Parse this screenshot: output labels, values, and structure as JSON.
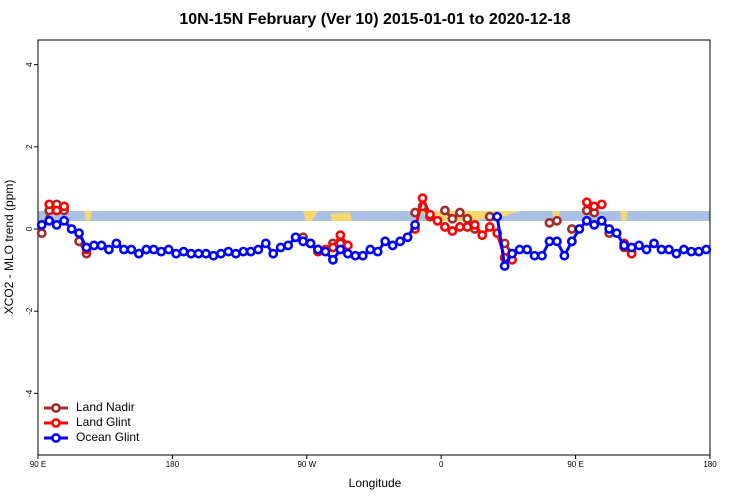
{
  "chart_data": {
    "type": "line",
    "title": "10N-15N February (Ver 10)   2015-01-01 to 2020-12-18",
    "x_label": "Longitude",
    "y_label": "XCO2 - MLO trend (ppm)",
    "xlim": [
      90,
      540
    ],
    "ylim": [
      -5.5,
      4.6
    ],
    "xticks": [
      {
        "value": 90,
        "label": "90 E"
      },
      180,
      {
        "value": 270,
        "label": "90 W"
      },
      {
        "value": 360,
        "label": "0"
      },
      {
        "value": 450,
        "label": "90 E"
      },
      {
        "value": 540,
        "label": "180"
      }
    ],
    "yticks": [
      -4,
      -2,
      0,
      2,
      4
    ],
    "legend": "bottom-left",
    "x": [
      92.5,
      97.5,
      102.5,
      107.5,
      112.5,
      117.5,
      122.5,
      127.5,
      132.5,
      137.5,
      142.5,
      147.5,
      152.5,
      157.5,
      162.5,
      167.5,
      172.5,
      177.5,
      182.5,
      187.5,
      192.5,
      197.5,
      202.5,
      207.5,
      212.5,
      217.5,
      222.5,
      227.5,
      232.5,
      237.5,
      242.5,
      247.5,
      252.5,
      257.5,
      262.5,
      267.5,
      272.5,
      277.5,
      282.5,
      287.5,
      292.5,
      297.5,
      302.5,
      307.5,
      312.5,
      317.5,
      322.5,
      327.5,
      332.5,
      337.5,
      342.5,
      347.5,
      352.5,
      357.5,
      362.5,
      367.5,
      372.5,
      377.5,
      382.5,
      387.5,
      392.5,
      397.5,
      402.5,
      407.5,
      412.5,
      417.5,
      422.5,
      427.5,
      432.5,
      437.5,
      442.5,
      447.5,
      452.5,
      457.5,
      462.5,
      467.5,
      472.5,
      477.5,
      482.5,
      487.5,
      492.5,
      497.5,
      502.5,
      507.5,
      512.5,
      517.5,
      522.5,
      527.5,
      532.5,
      537.5
    ],
    "series": [
      {
        "name": "Land Nadir",
        "color": "#a52a2a",
        "values": [
          -0.1,
          0.45,
          0.6,
          0.45,
          null,
          -0.3,
          -0.6,
          null,
          null,
          null,
          null,
          null,
          null,
          null,
          null,
          null,
          null,
          null,
          null,
          null,
          null,
          null,
          null,
          null,
          null,
          null,
          null,
          null,
          null,
          null,
          null,
          null,
          null,
          null,
          null,
          -0.2,
          null,
          -0.5,
          null,
          -0.35,
          -0.35,
          null,
          null,
          null,
          null,
          null,
          null,
          null,
          null,
          null,
          0.4,
          0.55,
          0.3,
          null,
          0.45,
          0.25,
          0.4,
          0.25,
          0.0,
          null,
          0.3,
          null,
          -0.35,
          -0.6,
          null,
          null,
          null,
          null,
          0.15,
          0.2,
          null,
          0.0,
          null,
          0.45,
          0.4,
          null,
          -0.1,
          null,
          -0.45,
          -0.55,
          null,
          null,
          null,
          null,
          null,
          null,
          null,
          null,
          null,
          null
        ]
      },
      {
        "name": "Land Glint",
        "color": "#ff0000",
        "values": [
          null,
          0.6,
          0.45,
          0.55,
          null,
          null,
          -0.5,
          null,
          null,
          null,
          null,
          null,
          null,
          null,
          null,
          null,
          null,
          null,
          null,
          null,
          null,
          null,
          null,
          null,
          null,
          null,
          null,
          null,
          null,
          null,
          null,
          null,
          null,
          null,
          null,
          null,
          -0.35,
          -0.55,
          -0.5,
          -0.45,
          -0.15,
          -0.4,
          null,
          null,
          null,
          null,
          null,
          null,
          null,
          null,
          0.0,
          0.75,
          0.35,
          0.2,
          0.05,
          -0.05,
          0.05,
          0.05,
          0.1,
          -0.15,
          0.05,
          -0.1,
          -0.7,
          -0.75,
          null,
          null,
          null,
          null,
          null,
          null,
          null,
          null,
          null,
          0.65,
          0.55,
          0.6,
          null,
          null,
          -0.35,
          -0.6,
          null,
          null,
          null,
          null,
          null,
          null,
          null,
          null,
          null,
          null
        ]
      },
      {
        "name": "Ocean Glint",
        "color": "#0000ff",
        "values": [
          0.1,
          0.2,
          0.1,
          0.2,
          0.0,
          -0.1,
          -0.45,
          -0.4,
          -0.4,
          -0.5,
          -0.35,
          -0.5,
          -0.5,
          -0.6,
          -0.5,
          -0.5,
          -0.55,
          -0.5,
          -0.6,
          -0.55,
          -0.6,
          -0.6,
          -0.6,
          -0.65,
          -0.6,
          -0.55,
          -0.6,
          -0.55,
          -0.55,
          -0.5,
          -0.35,
          -0.6,
          -0.45,
          -0.4,
          -0.2,
          -0.3,
          -0.35,
          -0.5,
          -0.55,
          -0.75,
          -0.5,
          -0.6,
          -0.65,
          -0.65,
          -0.5,
          -0.55,
          -0.3,
          -0.4,
          -0.3,
          -0.2,
          0.1,
          null,
          null,
          null,
          null,
          null,
          null,
          null,
          null,
          null,
          null,
          0.3,
          -0.9,
          -0.6,
          -0.5,
          -0.5,
          -0.65,
          -0.65,
          -0.3,
          -0.3,
          -0.65,
          -0.3,
          0.0,
          0.2,
          0.1,
          0.2,
          0.0,
          -0.1,
          -0.4,
          -0.45,
          -0.4,
          -0.5,
          -0.35,
          -0.5,
          -0.5,
          -0.6,
          -0.5,
          -0.55,
          -0.55,
          -0.5
        ]
      }
    ]
  }
}
